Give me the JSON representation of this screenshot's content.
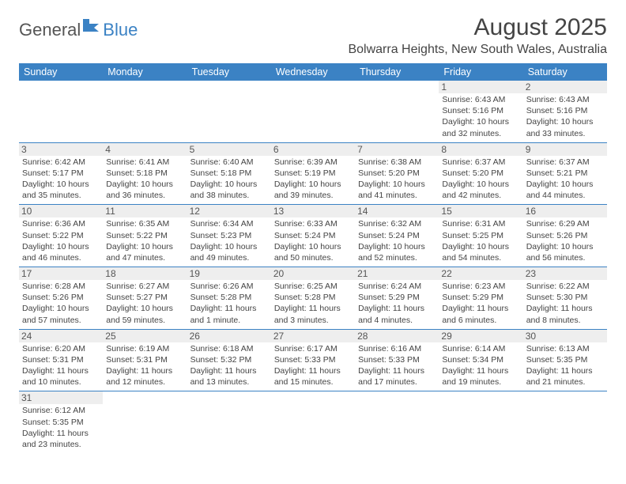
{
  "logo": {
    "word1": "General",
    "word2": "Blue"
  },
  "title": "August 2025",
  "location": "Bolwarra Heights, New South Wales, Australia",
  "colors": {
    "header_bg": "#3b82c4",
    "header_text": "#ffffff",
    "rule": "#3b82c4",
    "daynum_bg": "#eeeeee",
    "text": "#444444"
  },
  "typography": {
    "title_fontsize": 30,
    "location_fontsize": 16,
    "header_fontsize": 12.5,
    "body_fontsize": 10.5
  },
  "dayNames": [
    "Sunday",
    "Monday",
    "Tuesday",
    "Wednesday",
    "Thursday",
    "Friday",
    "Saturday"
  ],
  "weeks": [
    [
      null,
      null,
      null,
      null,
      null,
      {
        "n": "1",
        "sunrise": "Sunrise: 6:43 AM",
        "sunset": "Sunset: 5:16 PM",
        "day": "Daylight: 10 hours and 32 minutes."
      },
      {
        "n": "2",
        "sunrise": "Sunrise: 6:43 AM",
        "sunset": "Sunset: 5:16 PM",
        "day": "Daylight: 10 hours and 33 minutes."
      }
    ],
    [
      {
        "n": "3",
        "sunrise": "Sunrise: 6:42 AM",
        "sunset": "Sunset: 5:17 PM",
        "day": "Daylight: 10 hours and 35 minutes."
      },
      {
        "n": "4",
        "sunrise": "Sunrise: 6:41 AM",
        "sunset": "Sunset: 5:18 PM",
        "day": "Daylight: 10 hours and 36 minutes."
      },
      {
        "n": "5",
        "sunrise": "Sunrise: 6:40 AM",
        "sunset": "Sunset: 5:18 PM",
        "day": "Daylight: 10 hours and 38 minutes."
      },
      {
        "n": "6",
        "sunrise": "Sunrise: 6:39 AM",
        "sunset": "Sunset: 5:19 PM",
        "day": "Daylight: 10 hours and 39 minutes."
      },
      {
        "n": "7",
        "sunrise": "Sunrise: 6:38 AM",
        "sunset": "Sunset: 5:20 PM",
        "day": "Daylight: 10 hours and 41 minutes."
      },
      {
        "n": "8",
        "sunrise": "Sunrise: 6:37 AM",
        "sunset": "Sunset: 5:20 PM",
        "day": "Daylight: 10 hours and 42 minutes."
      },
      {
        "n": "9",
        "sunrise": "Sunrise: 6:37 AM",
        "sunset": "Sunset: 5:21 PM",
        "day": "Daylight: 10 hours and 44 minutes."
      }
    ],
    [
      {
        "n": "10",
        "sunrise": "Sunrise: 6:36 AM",
        "sunset": "Sunset: 5:22 PM",
        "day": "Daylight: 10 hours and 46 minutes."
      },
      {
        "n": "11",
        "sunrise": "Sunrise: 6:35 AM",
        "sunset": "Sunset: 5:22 PM",
        "day": "Daylight: 10 hours and 47 minutes."
      },
      {
        "n": "12",
        "sunrise": "Sunrise: 6:34 AM",
        "sunset": "Sunset: 5:23 PM",
        "day": "Daylight: 10 hours and 49 minutes."
      },
      {
        "n": "13",
        "sunrise": "Sunrise: 6:33 AM",
        "sunset": "Sunset: 5:24 PM",
        "day": "Daylight: 10 hours and 50 minutes."
      },
      {
        "n": "14",
        "sunrise": "Sunrise: 6:32 AM",
        "sunset": "Sunset: 5:24 PM",
        "day": "Daylight: 10 hours and 52 minutes."
      },
      {
        "n": "15",
        "sunrise": "Sunrise: 6:31 AM",
        "sunset": "Sunset: 5:25 PM",
        "day": "Daylight: 10 hours and 54 minutes."
      },
      {
        "n": "16",
        "sunrise": "Sunrise: 6:29 AM",
        "sunset": "Sunset: 5:26 PM",
        "day": "Daylight: 10 hours and 56 minutes."
      }
    ],
    [
      {
        "n": "17",
        "sunrise": "Sunrise: 6:28 AM",
        "sunset": "Sunset: 5:26 PM",
        "day": "Daylight: 10 hours and 57 minutes."
      },
      {
        "n": "18",
        "sunrise": "Sunrise: 6:27 AM",
        "sunset": "Sunset: 5:27 PM",
        "day": "Daylight: 10 hours and 59 minutes."
      },
      {
        "n": "19",
        "sunrise": "Sunrise: 6:26 AM",
        "sunset": "Sunset: 5:28 PM",
        "day": "Daylight: 11 hours and 1 minute."
      },
      {
        "n": "20",
        "sunrise": "Sunrise: 6:25 AM",
        "sunset": "Sunset: 5:28 PM",
        "day": "Daylight: 11 hours and 3 minutes."
      },
      {
        "n": "21",
        "sunrise": "Sunrise: 6:24 AM",
        "sunset": "Sunset: 5:29 PM",
        "day": "Daylight: 11 hours and 4 minutes."
      },
      {
        "n": "22",
        "sunrise": "Sunrise: 6:23 AM",
        "sunset": "Sunset: 5:29 PM",
        "day": "Daylight: 11 hours and 6 minutes."
      },
      {
        "n": "23",
        "sunrise": "Sunrise: 6:22 AM",
        "sunset": "Sunset: 5:30 PM",
        "day": "Daylight: 11 hours and 8 minutes."
      }
    ],
    [
      {
        "n": "24",
        "sunrise": "Sunrise: 6:20 AM",
        "sunset": "Sunset: 5:31 PM",
        "day": "Daylight: 11 hours and 10 minutes."
      },
      {
        "n": "25",
        "sunrise": "Sunrise: 6:19 AM",
        "sunset": "Sunset: 5:31 PM",
        "day": "Daylight: 11 hours and 12 minutes."
      },
      {
        "n": "26",
        "sunrise": "Sunrise: 6:18 AM",
        "sunset": "Sunset: 5:32 PM",
        "day": "Daylight: 11 hours and 13 minutes."
      },
      {
        "n": "27",
        "sunrise": "Sunrise: 6:17 AM",
        "sunset": "Sunset: 5:33 PM",
        "day": "Daylight: 11 hours and 15 minutes."
      },
      {
        "n": "28",
        "sunrise": "Sunrise: 6:16 AM",
        "sunset": "Sunset: 5:33 PM",
        "day": "Daylight: 11 hours and 17 minutes."
      },
      {
        "n": "29",
        "sunrise": "Sunrise: 6:14 AM",
        "sunset": "Sunset: 5:34 PM",
        "day": "Daylight: 11 hours and 19 minutes."
      },
      {
        "n": "30",
        "sunrise": "Sunrise: 6:13 AM",
        "sunset": "Sunset: 5:35 PM",
        "day": "Daylight: 11 hours and 21 minutes."
      }
    ],
    [
      {
        "n": "31",
        "sunrise": "Sunrise: 6:12 AM",
        "sunset": "Sunset: 5:35 PM",
        "day": "Daylight: 11 hours and 23 minutes."
      },
      null,
      null,
      null,
      null,
      null,
      null
    ]
  ]
}
